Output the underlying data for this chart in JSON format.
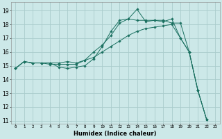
{
  "title": "",
  "xlabel": "Humidex (Indice chaleur)",
  "background_color": "#cce8e8",
  "grid_color": "#aacccc",
  "line_color": "#1a7060",
  "xlim": [
    -0.5,
    23.5
  ],
  "ylim": [
    10.8,
    19.6
  ],
  "xticks": [
    0,
    1,
    2,
    3,
    4,
    5,
    6,
    7,
    8,
    9,
    10,
    11,
    12,
    13,
    14,
    15,
    16,
    17,
    18,
    19,
    20,
    21,
    22,
    23
  ],
  "yticks": [
    11,
    12,
    13,
    14,
    15,
    16,
    17,
    18,
    19
  ],
  "lines": [
    {
      "x": [
        0,
        1,
        2,
        3,
        4,
        5,
        6,
        7,
        8,
        9,
        10,
        11,
        12,
        13,
        14,
        15,
        16,
        17,
        18,
        19,
        20,
        21,
        22
      ],
      "y": [
        14.8,
        15.3,
        15.2,
        15.2,
        15.2,
        14.9,
        14.8,
        14.9,
        15.0,
        15.5,
        16.4,
        17.5,
        18.3,
        18.4,
        19.1,
        18.2,
        18.3,
        18.2,
        18.4,
        17.0,
        16.0,
        13.2,
        11.1
      ]
    },
    {
      "x": [
        0,
        1,
        2,
        3,
        4,
        5,
        6,
        7,
        8,
        9,
        10,
        11,
        12,
        13,
        14,
        15,
        16,
        17,
        18,
        19,
        20,
        21,
        22
      ],
      "y": [
        14.8,
        15.3,
        15.2,
        15.2,
        15.2,
        15.2,
        15.3,
        15.2,
        15.4,
        16.0,
        16.5,
        17.2,
        18.1,
        18.4,
        18.3,
        18.3,
        18.3,
        18.3,
        18.1,
        18.1,
        16.0,
        13.2,
        11.1
      ]
    },
    {
      "x": [
        0,
        1,
        2,
        3,
        4,
        5,
        6,
        7,
        8,
        9,
        10,
        11,
        12,
        13,
        14,
        15,
        16,
        17,
        18,
        19,
        20,
        21,
        22
      ],
      "y": [
        14.8,
        15.3,
        15.2,
        15.2,
        15.1,
        15.1,
        15.1,
        15.1,
        15.4,
        15.6,
        16.0,
        16.4,
        16.8,
        17.2,
        17.5,
        17.7,
        17.8,
        17.9,
        18.0,
        17.0,
        16.0,
        13.2,
        11.1
      ]
    }
  ],
  "figsize": [
    3.2,
    2.0
  ],
  "dpi": 100
}
